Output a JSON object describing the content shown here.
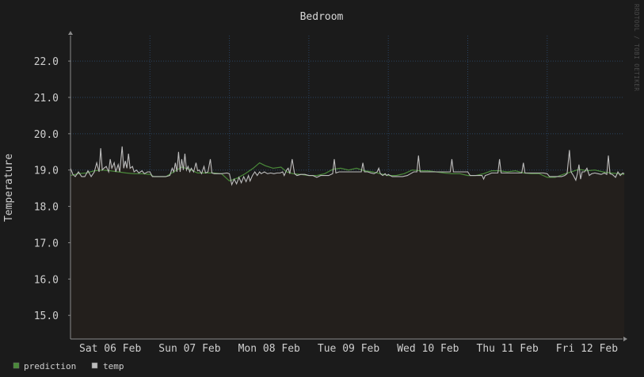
{
  "chart_data": {
    "type": "line",
    "title": "Bedroom",
    "ylabel": "Temperature",
    "xlabel": "",
    "ylim": [
      14.35,
      22.7
    ],
    "y_ticks": [
      15.0,
      16.0,
      17.0,
      18.0,
      19.0,
      20.0,
      21.0,
      22.0
    ],
    "y_tick_labels": [
      "15.0",
      "16.0",
      "17.0",
      "18.0",
      "19.0",
      "20.0",
      "21.0",
      "22.0"
    ],
    "xlim_days": [
      0,
      6.97
    ],
    "x_ticks": [
      "Sat 06 Feb",
      "Sun 07 Feb",
      "Mon 08 Feb",
      "Tue 09 Feb",
      "Wed 10 Feb",
      "Thu 11 Feb",
      "Fri 12 Feb"
    ],
    "grid": true,
    "legend": "bottom-left",
    "watermark": "RRDTOOL / TOBI OETIKER",
    "series": [
      {
        "name": "prediction",
        "color": "#4a8a3a",
        "points": [
          [
            0.0,
            18.85
          ],
          [
            0.1,
            18.9
          ],
          [
            0.2,
            18.92
          ],
          [
            0.3,
            18.98
          ],
          [
            0.4,
            19.0
          ],
          [
            0.5,
            18.98
          ],
          [
            0.6,
            18.95
          ],
          [
            0.7,
            18.92
          ],
          [
            0.8,
            18.9
          ],
          [
            0.9,
            18.9
          ],
          [
            1.0,
            18.88
          ],
          [
            1.05,
            18.82
          ],
          [
            1.2,
            18.82
          ],
          [
            1.3,
            18.95
          ],
          [
            1.4,
            19.08
          ],
          [
            1.5,
            19.02
          ],
          [
            1.6,
            18.92
          ],
          [
            1.7,
            18.92
          ],
          [
            1.8,
            18.92
          ],
          [
            1.9,
            18.9
          ],
          [
            2.0,
            18.7
          ],
          [
            2.1,
            18.78
          ],
          [
            2.2,
            18.9
          ],
          [
            2.3,
            19.05
          ],
          [
            2.38,
            19.2
          ],
          [
            2.45,
            19.12
          ],
          [
            2.55,
            19.05
          ],
          [
            2.65,
            19.08
          ],
          [
            2.72,
            18.95
          ],
          [
            2.8,
            18.9
          ],
          [
            2.9,
            18.88
          ],
          [
            3.0,
            18.85
          ],
          [
            3.1,
            18.85
          ],
          [
            3.2,
            18.9
          ],
          [
            3.3,
            19.02
          ],
          [
            3.4,
            19.05
          ],
          [
            3.5,
            19.0
          ],
          [
            3.6,
            19.05
          ],
          [
            3.7,
            18.98
          ],
          [
            3.8,
            18.95
          ],
          [
            3.9,
            18.9
          ],
          [
            4.0,
            18.85
          ],
          [
            4.1,
            18.85
          ],
          [
            4.2,
            18.9
          ],
          [
            4.3,
            19.0
          ],
          [
            4.4,
            18.98
          ],
          [
            4.5,
            18.98
          ],
          [
            4.6,
            18.95
          ],
          [
            4.7,
            18.92
          ],
          [
            4.8,
            18.9
          ],
          [
            4.9,
            18.9
          ],
          [
            5.0,
            18.85
          ],
          [
            5.1,
            18.85
          ],
          [
            5.2,
            18.9
          ],
          [
            5.3,
            18.98
          ],
          [
            5.4,
            18.98
          ],
          [
            5.5,
            18.95
          ],
          [
            5.6,
            18.98
          ],
          [
            5.7,
            18.92
          ],
          [
            5.8,
            18.9
          ],
          [
            5.9,
            18.9
          ],
          [
            6.0,
            18.8
          ],
          [
            6.1,
            18.8
          ],
          [
            6.2,
            18.88
          ],
          [
            6.3,
            18.95
          ],
          [
            6.4,
            19.02
          ],
          [
            6.5,
            18.98
          ],
          [
            6.6,
            19.0
          ],
          [
            6.7,
            18.95
          ],
          [
            6.8,
            18.92
          ],
          [
            6.9,
            18.9
          ],
          [
            6.97,
            18.88
          ]
        ]
      },
      {
        "name": "temp",
        "color": "#bdbdbd",
        "points": [
          [
            0.0,
            19.05
          ],
          [
            0.03,
            18.88
          ],
          [
            0.06,
            18.82
          ],
          [
            0.1,
            18.95
          ],
          [
            0.14,
            18.82
          ],
          [
            0.18,
            18.82
          ],
          [
            0.22,
            18.98
          ],
          [
            0.26,
            18.82
          ],
          [
            0.3,
            18.95
          ],
          [
            0.33,
            19.2
          ],
          [
            0.36,
            18.95
          ],
          [
            0.38,
            19.6
          ],
          [
            0.4,
            19.0
          ],
          [
            0.42,
            19.05
          ],
          [
            0.45,
            19.1
          ],
          [
            0.48,
            18.95
          ],
          [
            0.5,
            19.3
          ],
          [
            0.52,
            19.05
          ],
          [
            0.55,
            19.2
          ],
          [
            0.57,
            18.95
          ],
          [
            0.6,
            19.15
          ],
          [
            0.62,
            18.95
          ],
          [
            0.65,
            19.65
          ],
          [
            0.67,
            19.05
          ],
          [
            0.69,
            19.25
          ],
          [
            0.71,
            19.05
          ],
          [
            0.73,
            19.45
          ],
          [
            0.75,
            19.05
          ],
          [
            0.78,
            19.1
          ],
          [
            0.8,
            18.95
          ],
          [
            0.83,
            19.0
          ],
          [
            0.86,
            18.92
          ],
          [
            0.9,
            18.98
          ],
          [
            0.93,
            18.9
          ],
          [
            0.97,
            18.95
          ],
          [
            1.0,
            18.95
          ],
          [
            1.03,
            18.82
          ],
          [
            1.2,
            18.82
          ],
          [
            1.25,
            18.85
          ],
          [
            1.28,
            19.05
          ],
          [
            1.3,
            18.95
          ],
          [
            1.32,
            19.2
          ],
          [
            1.34,
            18.95
          ],
          [
            1.36,
            19.5
          ],
          [
            1.38,
            18.95
          ],
          [
            1.4,
            19.3
          ],
          [
            1.42,
            19.0
          ],
          [
            1.44,
            19.45
          ],
          [
            1.46,
            19.0
          ],
          [
            1.48,
            19.1
          ],
          [
            1.5,
            18.95
          ],
          [
            1.52,
            19.05
          ],
          [
            1.55,
            18.95
          ],
          [
            1.58,
            19.2
          ],
          [
            1.6,
            18.98
          ],
          [
            1.62,
            19.0
          ],
          [
            1.65,
            18.9
          ],
          [
            1.68,
            19.1
          ],
          [
            1.7,
            18.92
          ],
          [
            1.73,
            18.95
          ],
          [
            1.76,
            19.3
          ],
          [
            1.78,
            18.92
          ],
          [
            1.81,
            18.9
          ],
          [
            1.9,
            18.9
          ],
          [
            1.97,
            18.92
          ],
          [
            2.0,
            18.9
          ],
          [
            2.03,
            18.6
          ],
          [
            2.06,
            18.75
          ],
          [
            2.09,
            18.62
          ],
          [
            2.12,
            18.8
          ],
          [
            2.15,
            18.65
          ],
          [
            2.18,
            18.82
          ],
          [
            2.21,
            18.68
          ],
          [
            2.24,
            18.85
          ],
          [
            2.26,
            18.7
          ],
          [
            2.29,
            18.85
          ],
          [
            2.32,
            18.95
          ],
          [
            2.35,
            18.85
          ],
          [
            2.38,
            18.95
          ],
          [
            2.4,
            18.9
          ],
          [
            2.44,
            18.95
          ],
          [
            2.48,
            18.9
          ],
          [
            2.52,
            18.92
          ],
          [
            2.56,
            18.9
          ],
          [
            2.6,
            18.92
          ],
          [
            2.64,
            18.92
          ],
          [
            2.67,
            18.95
          ],
          [
            2.69,
            18.85
          ],
          [
            2.72,
            19.0
          ],
          [
            2.74,
            19.05
          ],
          [
            2.76,
            18.9
          ],
          [
            2.79,
            19.3
          ],
          [
            2.82,
            18.9
          ],
          [
            2.85,
            18.85
          ],
          [
            2.9,
            18.88
          ],
          [
            2.95,
            18.88
          ],
          [
            3.0,
            18.85
          ],
          [
            3.05,
            18.85
          ],
          [
            3.1,
            18.8
          ],
          [
            3.15,
            18.85
          ],
          [
            3.2,
            18.85
          ],
          [
            3.25,
            18.85
          ],
          [
            3.3,
            18.9
          ],
          [
            3.32,
            19.3
          ],
          [
            3.34,
            18.92
          ],
          [
            3.38,
            18.95
          ],
          [
            3.42,
            18.95
          ],
          [
            3.46,
            18.95
          ],
          [
            3.5,
            18.95
          ],
          [
            3.54,
            18.95
          ],
          [
            3.58,
            18.95
          ],
          [
            3.62,
            18.95
          ],
          [
            3.66,
            18.95
          ],
          [
            3.68,
            19.2
          ],
          [
            3.7,
            18.95
          ],
          [
            3.74,
            18.95
          ],
          [
            3.78,
            18.92
          ],
          [
            3.82,
            18.9
          ],
          [
            3.86,
            18.95
          ],
          [
            3.88,
            19.05
          ],
          [
            3.9,
            18.9
          ],
          [
            3.93,
            18.85
          ],
          [
            3.96,
            18.9
          ],
          [
            3.98,
            18.85
          ],
          [
            4.0,
            18.88
          ],
          [
            4.05,
            18.82
          ],
          [
            4.12,
            18.82
          ],
          [
            4.18,
            18.82
          ],
          [
            4.24,
            18.85
          ],
          [
            4.28,
            18.9
          ],
          [
            4.32,
            18.95
          ],
          [
            4.36,
            18.95
          ],
          [
            4.38,
            19.4
          ],
          [
            4.4,
            18.95
          ],
          [
            4.45,
            18.95
          ],
          [
            4.5,
            18.95
          ],
          [
            4.55,
            18.95
          ],
          [
            4.6,
            18.95
          ],
          [
            4.65,
            18.95
          ],
          [
            4.7,
            18.95
          ],
          [
            4.74,
            18.95
          ],
          [
            4.78,
            18.95
          ],
          [
            4.8,
            19.3
          ],
          [
            4.82,
            18.95
          ],
          [
            4.86,
            18.95
          ],
          [
            4.9,
            18.95
          ],
          [
            4.95,
            18.95
          ],
          [
            5.0,
            18.95
          ],
          [
            5.03,
            18.85
          ],
          [
            5.1,
            18.85
          ],
          [
            5.15,
            18.85
          ],
          [
            5.18,
            18.85
          ],
          [
            5.2,
            18.75
          ],
          [
            5.22,
            18.85
          ],
          [
            5.26,
            18.88
          ],
          [
            5.3,
            18.92
          ],
          [
            5.34,
            18.92
          ],
          [
            5.38,
            18.92
          ],
          [
            5.4,
            19.3
          ],
          [
            5.42,
            18.92
          ],
          [
            5.46,
            18.92
          ],
          [
            5.5,
            18.92
          ],
          [
            5.55,
            18.92
          ],
          [
            5.6,
            18.92
          ],
          [
            5.64,
            18.92
          ],
          [
            5.68,
            18.92
          ],
          [
            5.7,
            19.2
          ],
          [
            5.72,
            18.92
          ],
          [
            5.76,
            18.92
          ],
          [
            5.8,
            18.92
          ],
          [
            5.85,
            18.92
          ],
          [
            5.9,
            18.92
          ],
          [
            5.95,
            18.92
          ],
          [
            6.0,
            18.9
          ],
          [
            6.03,
            18.82
          ],
          [
            6.1,
            18.82
          ],
          [
            6.14,
            18.82
          ],
          [
            6.18,
            18.82
          ],
          [
            6.22,
            18.85
          ],
          [
            6.25,
            18.9
          ],
          [
            6.28,
            19.55
          ],
          [
            6.3,
            18.95
          ],
          [
            6.33,
            18.85
          ],
          [
            6.36,
            18.72
          ],
          [
            6.38,
            18.9
          ],
          [
            6.4,
            19.15
          ],
          [
            6.42,
            18.75
          ],
          [
            6.44,
            18.95
          ],
          [
            6.47,
            18.95
          ],
          [
            6.5,
            19.05
          ],
          [
            6.53,
            18.85
          ],
          [
            6.56,
            18.9
          ],
          [
            6.6,
            18.92
          ],
          [
            6.64,
            18.9
          ],
          [
            6.68,
            18.88
          ],
          [
            6.72,
            18.92
          ],
          [
            6.75,
            18.88
          ],
          [
            6.77,
            19.4
          ],
          [
            6.79,
            18.9
          ],
          [
            6.82,
            18.88
          ],
          [
            6.86,
            18.8
          ],
          [
            6.89,
            18.95
          ],
          [
            6.92,
            18.85
          ],
          [
            6.95,
            18.92
          ],
          [
            6.97,
            18.9
          ]
        ]
      }
    ]
  }
}
